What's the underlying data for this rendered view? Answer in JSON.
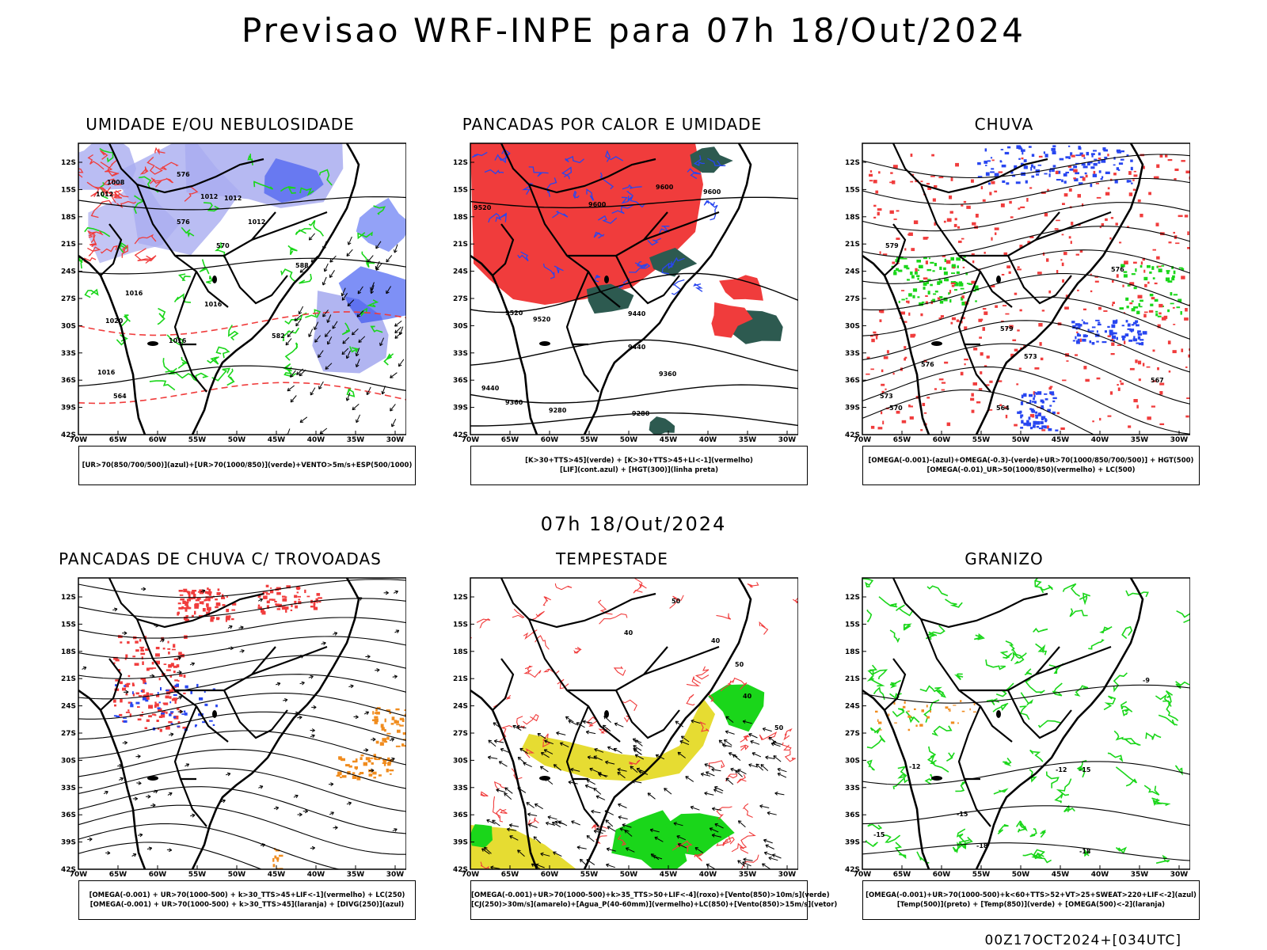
{
  "title": "Previsao WRF-INPE  para 07h 18/Out/2024",
  "subtitle": "07h 18/Out/2024",
  "footer": "00Z17OCT2024+[034UTC]",
  "colors": {
    "red": "#f03c3c",
    "green": "#1ad61a",
    "blue": "#2846f0",
    "lightblue": "#a9adf0",
    "orange": "#f08c1e",
    "yellow": "#e6dc32",
    "darkgreen": "#2d5a50",
    "black": "#000000"
  },
  "panels": [
    {
      "title": "UMIDADE E/OU NEBULOSIDADE",
      "legend": [
        "[UR>70(850/700/500)](azul)+[UR>70(1000/850)](verde)+VENTO>5m/s+ESP(500/1000)"
      ],
      "labels": [
        "1008",
        "1012",
        "1012",
        "1012",
        "1012",
        "1016",
        "1016",
        "1016",
        "1016",
        "1020",
        "576",
        "576",
        "570",
        "582",
        "588",
        "564"
      ]
    },
    {
      "title": "PANCADAS POR CALOR E UMIDADE",
      "legend": [
        "[K>30+TTS>45](verde) + [K>30+TTS>45+LI<-1](vermelho)",
        "[LIF](cont.azul) + [HGT(300)](linha preta)"
      ],
      "labels": [
        "9600",
        "9600",
        "9600",
        "9520",
        "9520",
        "9520",
        "9440",
        "9440",
        "9440",
        "9360",
        "9360",
        "9280",
        "9280"
      ]
    },
    {
      "title": "CHUVA",
      "legend": [
        "[OMEGA(-0.001)-(azul)+OMEGA(-0.3)-(verde)+UR>70(1000/850/700/500)] + HGT(500)",
        "[OMEGA(-0.01)_UR>50(1000/850)(vermelho) + LC(500)"
      ],
      "labels": [
        "579",
        "579",
        "576",
        "576",
        "573",
        "573",
        "570",
        "567",
        "564"
      ]
    },
    {
      "title": "PANCADAS DE CHUVA C/ TROVOADAS",
      "legend": [
        "[OMEGA(-0.001) + UR>70(1000-500) + k>30_TTS>45+LIF<-1](vermelho) + LC(250)",
        "[OMEGA(-0.001) + UR>70(1000-500) + k>30_TTS>45](laranja) + [DIVG(250)](azul)"
      ],
      "labels": []
    },
    {
      "title": "TEMPESTADE",
      "legend": [
        "[OMEGA(-0.001)+UR>70(1000-500)+k>35_TTS>50+LIF<-4](roxo)+[Vento(850)>10m/s](verde)",
        "[CJ(250)>30m/s](amarelo)+[Agua_P(40-60mm)](vermelho)+LC(850)+[Vento(850)>15m/s](vetor)"
      ],
      "labels": [
        "50",
        "50",
        "50",
        "40",
        "40",
        "40"
      ]
    },
    {
      "title": "GRANIZO",
      "legend": [
        "[OMEGA(-0.001)+UR>70(1000-500)+k<60+TTS>52+VT>25+SWEAT>220+LIF<-2](azul)",
        "[Temp(500)](preto) + [Temp(850)](verde) + [OMEGA(500)<-2](laranja)"
      ],
      "labels": [
        "-9",
        "-12",
        "-12",
        "-15",
        "-15",
        "-15",
        "-18",
        "-18"
      ]
    }
  ],
  "chart_data": {
    "type": "map",
    "axes": {
      "x_ticks": [
        "70W",
        "65W",
        "60W",
        "55W",
        "50W",
        "45W",
        "40W",
        "35W",
        "30W"
      ],
      "y_ticks": [
        "12S",
        "15S",
        "18S",
        "21S",
        "24S",
        "27S",
        "30S",
        "33S",
        "36S",
        "39S",
        "42S"
      ],
      "lon_range": [
        -70,
        -28
      ],
      "lat_range": [
        -42,
        -10
      ]
    },
    "panels": [
      "UMIDADE E/OU NEBULOSIDADE",
      "PANCADAS POR CALOR E UMIDADE",
      "CHUVA",
      "PANCADAS DE CHUVA C/ TROVOADAS",
      "TEMPESTADE",
      "GRANIZO"
    ]
  }
}
